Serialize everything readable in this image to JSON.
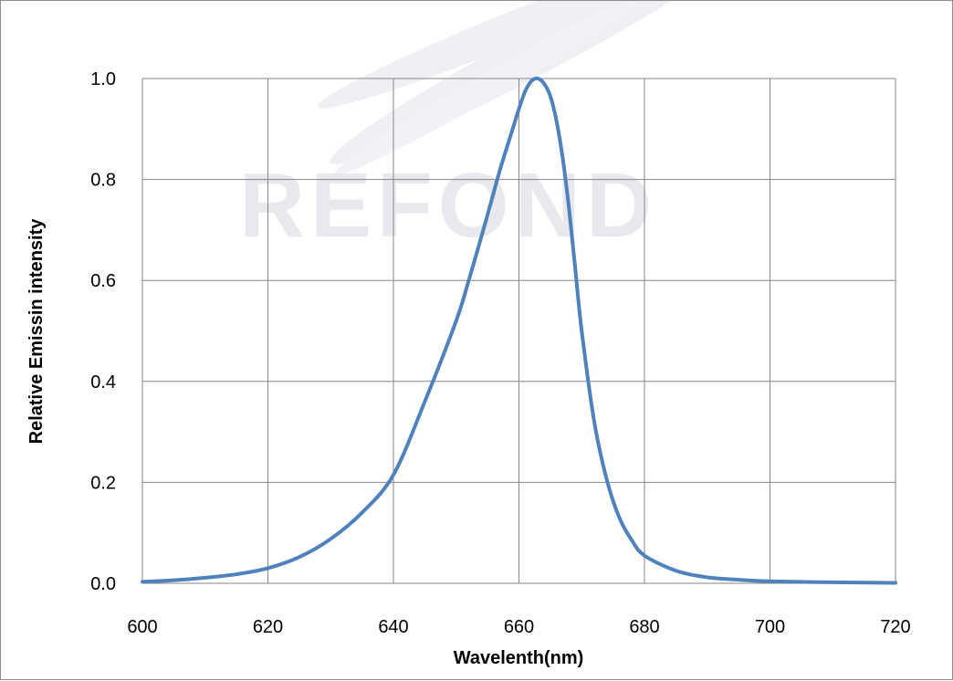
{
  "chart_data": {
    "type": "line",
    "title": "",
    "xlabel": "Wavelenth(nm)",
    "ylabel": "Relative Emissin intensity",
    "xlim": [
      600,
      720
    ],
    "ylim": [
      0,
      1.0
    ],
    "x_ticks": [
      "600",
      "620",
      "640",
      "660",
      "680",
      "700",
      "720"
    ],
    "y_ticks": [
      "0.0",
      "0.2",
      "0.4",
      "0.6",
      "0.8",
      "1.0"
    ],
    "grid": true,
    "legend": "none",
    "line_color": "#4f81bd",
    "watermark": "REFOND",
    "series": [
      {
        "x": [
          600,
          605,
          610,
          615,
          620,
          625,
          630,
          635,
          640,
          645,
          650,
          652,
          655,
          657,
          659,
          660,
          661,
          662,
          663,
          664,
          665,
          666,
          667,
          668,
          669,
          670,
          672,
          674,
          676,
          678,
          680,
          685,
          690,
          695,
          700,
          710,
          720
        ],
        "y": [
          0.003,
          0.006,
          0.011,
          0.018,
          0.03,
          0.052,
          0.088,
          0.14,
          0.215,
          0.36,
          0.52,
          0.6,
          0.73,
          0.82,
          0.9,
          0.94,
          0.975,
          0.995,
          1.0,
          0.99,
          0.965,
          0.915,
          0.84,
          0.74,
          0.62,
          0.5,
          0.32,
          0.205,
          0.13,
          0.085,
          0.055,
          0.025,
          0.012,
          0.007,
          0.004,
          0.002,
          0.001
        ]
      }
    ]
  }
}
